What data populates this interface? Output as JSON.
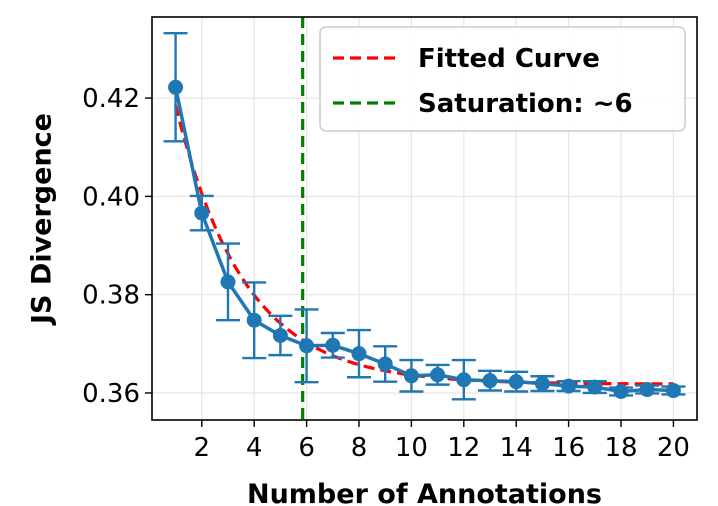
{
  "chart_data": {
    "type": "line",
    "xlabel": "Number of Annotations",
    "ylabel": "JS Divergence",
    "xlim": [
      0.1,
      20.9
    ],
    "ylim": [
      0.3545,
      0.4365
    ],
    "xticks": [
      2,
      4,
      6,
      8,
      10,
      12,
      14,
      16,
      18,
      20
    ],
    "xtick_labels": [
      "2",
      "4",
      "6",
      "8",
      "10",
      "12",
      "14",
      "16",
      "18",
      "20"
    ],
    "yticks": [
      0.36,
      0.38,
      0.4,
      0.42
    ],
    "ytick_labels": [
      "0.36",
      "0.38",
      "0.40",
      "0.42"
    ],
    "grid": true,
    "legend_position": "top-right",
    "series": [
      {
        "kind": "errorbar-line",
        "color": "#1f77b4",
        "x": [
          1,
          2,
          3,
          4,
          5,
          6,
          7,
          8,
          9,
          10,
          11,
          12,
          13,
          14,
          15,
          16,
          17,
          18,
          19,
          20
        ],
        "y": [
          0.4222,
          0.3966,
          0.3826,
          0.3748,
          0.3717,
          0.3696,
          0.3697,
          0.368,
          0.3659,
          0.3635,
          0.3637,
          0.3627,
          0.3625,
          0.3623,
          0.3619,
          0.3614,
          0.3612,
          0.3603,
          0.3607,
          0.3605
        ],
        "yerr": [
          0.011,
          0.0035,
          0.0078,
          0.0077,
          0.004,
          0.0074,
          0.0025,
          0.0048,
          0.0036,
          0.0032,
          0.002,
          0.004,
          0.002,
          0.002,
          0.0015,
          0.001,
          0.0012,
          0.0008,
          0.0008,
          0.0008
        ]
      },
      {
        "kind": "fitted-curve",
        "name": "Fitted Curve",
        "color": "#ff0000",
        "style": "dashed",
        "x_range": [
          1,
          20
        ]
      },
      {
        "kind": "vline",
        "name": "Saturation: ~6",
        "color": "#008000",
        "style": "dashed",
        "x": 5.85
      }
    ]
  }
}
